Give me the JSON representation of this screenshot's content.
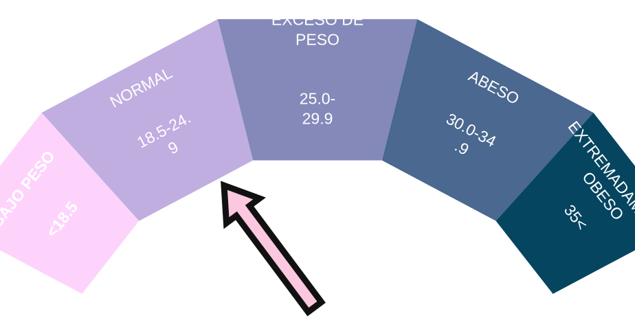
{
  "segments": [
    {
      "name": "bajo-peso",
      "title_lines": [
        "BAJO PESO"
      ],
      "range_lines": [
        "<18.5"
      ],
      "color": "#fdd3fc",
      "bold": true
    },
    {
      "name": "normal",
      "title_lines": [
        "NORMAL"
      ],
      "range_lines": [
        "18.5-24.",
        "9"
      ],
      "color": "#c0aee0",
      "bold": false
    },
    {
      "name": "exceso-de-peso",
      "title_lines": [
        "EXCESO DE",
        "PESO"
      ],
      "range_lines": [
        "25.0-",
        "29.9"
      ],
      "color": "#8489b9",
      "bold": false
    },
    {
      "name": "abeso",
      "title_lines": [
        "ABESO"
      ],
      "range_lines": [
        "30.0-34",
        ".9"
      ],
      "color": "#4a6890",
      "bold": false
    },
    {
      "name": "extremadamente-obeso",
      "title_lines": [
        "EXTREMADAMENTE",
        "OBESO"
      ],
      "range_lines": [
        "35<"
      ],
      "color": "#054560",
      "bold": false
    }
  ],
  "pointer": {
    "color": "#fbc8df",
    "outline": "#111111",
    "points_to": "normal"
  }
}
